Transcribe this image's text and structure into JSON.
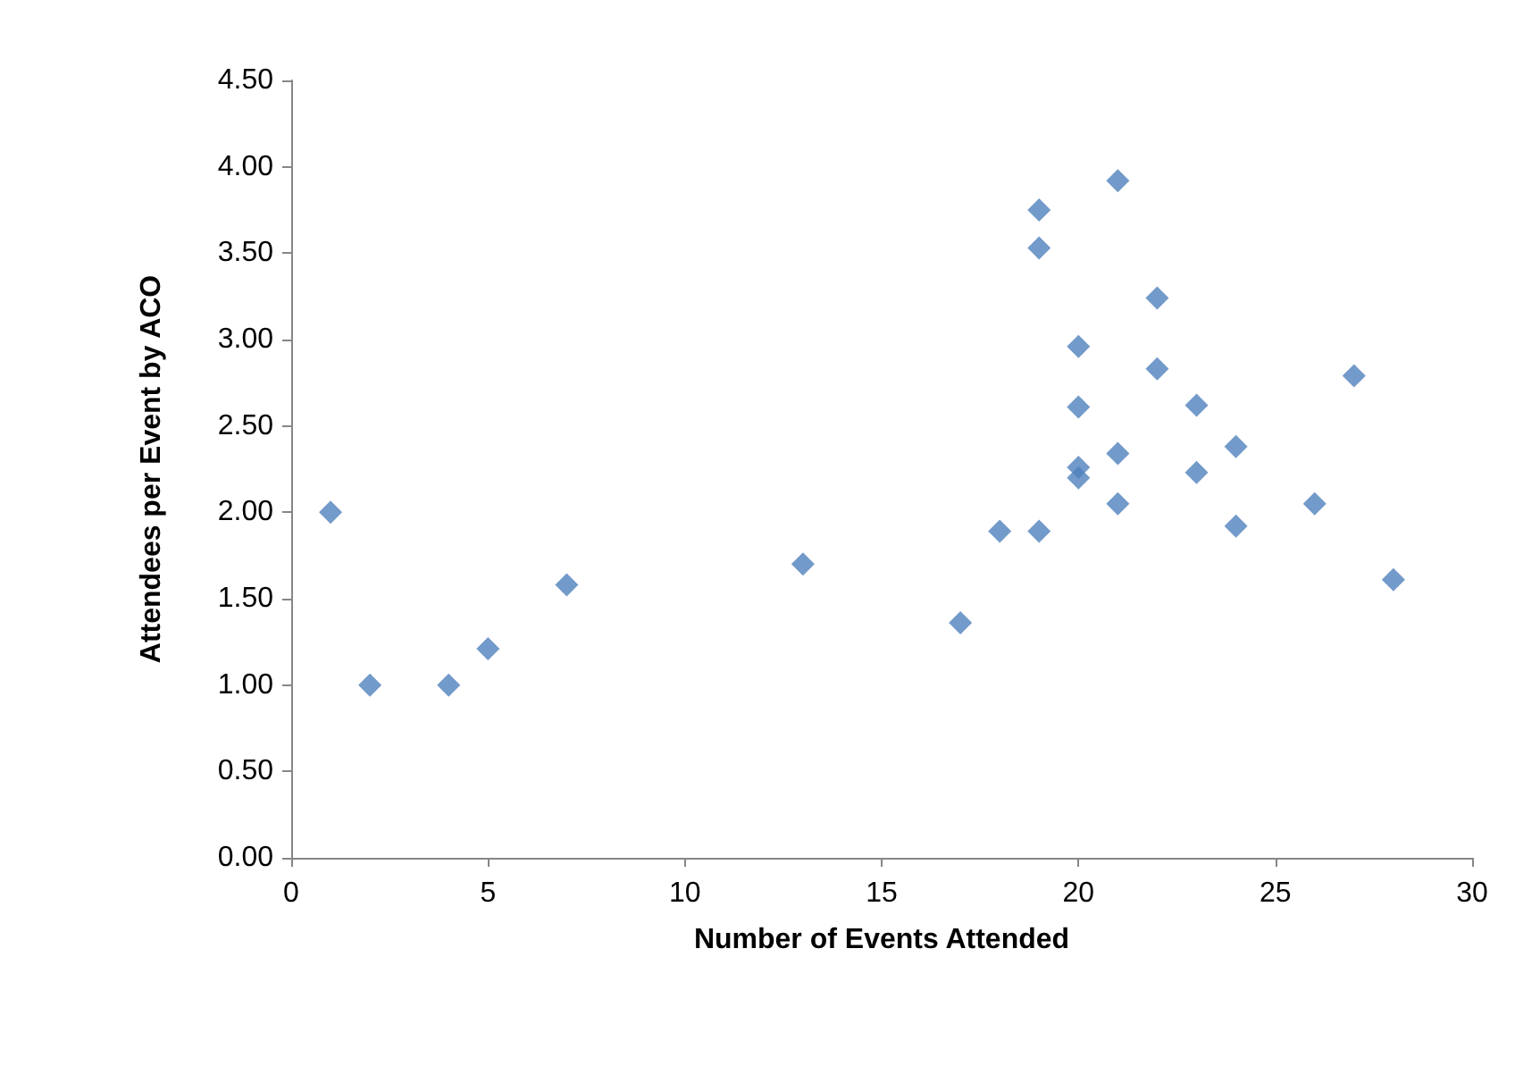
{
  "chart_data": {
    "type": "scatter",
    "xlabel": "Number of Events Attended",
    "ylabel": "Attendees per Event by ACO",
    "x": [
      1,
      2,
      4,
      5,
      7,
      13,
      17,
      18,
      19,
      19,
      19,
      20,
      20,
      20,
      20,
      21,
      21,
      21,
      22,
      22,
      23,
      23,
      24,
      24,
      26,
      27,
      28
    ],
    "series": [
      {
        "color": "#4f81bd",
        "values": [
          2.0,
          1.0,
          1.0,
          1.21,
          1.58,
          1.7,
          1.36,
          1.89,
          1.89,
          3.53,
          3.75,
          2.96,
          2.61,
          2.26,
          2.2,
          3.92,
          2.34,
          2.05,
          3.24,
          2.83,
          2.62,
          2.23,
          2.38,
          1.92,
          2.05,
          2.79,
          1.61
        ]
      }
    ],
    "xlim": [
      0,
      30
    ],
    "xticks": [
      0,
      5,
      10,
      15,
      20,
      25,
      30
    ],
    "ylim": [
      0,
      4.5
    ],
    "yticks": [
      {
        "value": 0,
        "label": "0.00"
      },
      {
        "value": 0.5,
        "label": "0.50"
      },
      {
        "value": 1,
        "label": "1.00"
      },
      {
        "value": 1.5,
        "label": "1.50"
      },
      {
        "value": 2,
        "label": "2.00"
      },
      {
        "value": 2.5,
        "label": "2.50"
      },
      {
        "value": 3,
        "label": "3.00"
      },
      {
        "value": 3.5,
        "label": "3.50"
      },
      {
        "value": 4,
        "label": "4.00"
      },
      {
        "value": 4.5,
        "label": "4.50"
      }
    ],
    "grid": false,
    "marker": "diamond"
  }
}
